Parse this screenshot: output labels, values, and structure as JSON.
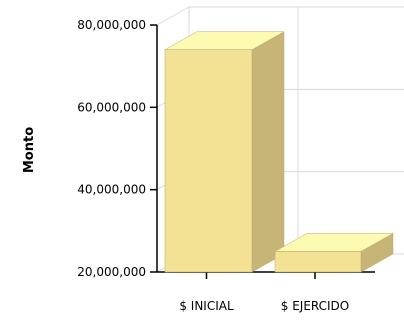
{
  "chart_data": {
    "type": "bar",
    "ylabel": "Monto",
    "categories": [
      "$ INICIAL",
      "$ EJERCIDO"
    ],
    "values": [
      74000000,
      25000000
    ],
    "ylim": [
      20000000,
      80000000
    ],
    "yticks": [
      20000000,
      40000000,
      60000000,
      80000000
    ],
    "ytick_labels": [
      "20,000,000",
      "40,000,000",
      "60,000,000",
      "80,000,000"
    ],
    "grid": true,
    "three_d": true,
    "colors": {
      "bar_front": "#f3e194",
      "bar_top": "#fdfbb2",
      "bar_side": "#c7b578",
      "bar_edge": "#b9a86f",
      "grid": "#d9d9d9",
      "axis": "#000000"
    }
  }
}
